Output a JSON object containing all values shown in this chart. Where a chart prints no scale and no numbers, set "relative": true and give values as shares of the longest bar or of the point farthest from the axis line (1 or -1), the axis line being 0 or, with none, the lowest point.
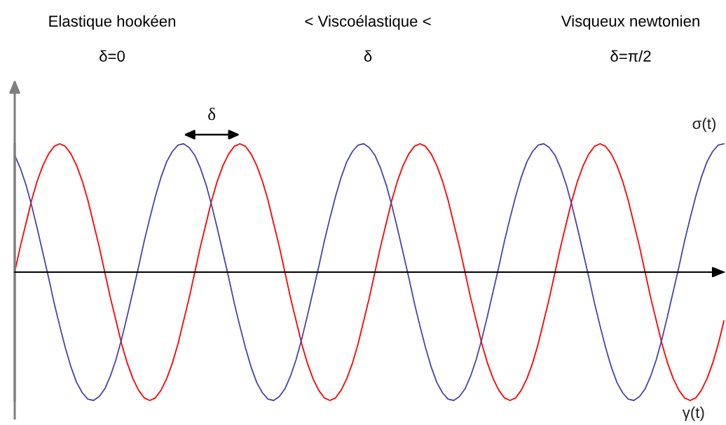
{
  "chart_data": {
    "type": "line",
    "relative": true,
    "categories": [
      null,
      null,
      null,
      null,
      null,
      null,
      null,
      null,
      null,
      null,
      null,
      null,
      null,
      null,
      null,
      null,
      null,
      null,
      null,
      null,
      null,
      null,
      null,
      null,
      null,
      null,
      null,
      null,
      null,
      null,
      null,
      null,
      null,
      null,
      null,
      null,
      null,
      null,
      null,
      null,
      null,
      null,
      null,
      null,
      null,
      null,
      null,
      null,
      null,
      null,
      null,
      null,
      null,
      null,
      null,
      null,
      null,
      null,
      null,
      null,
      null,
      null,
      null,
      null,
      null,
      null,
      null,
      null,
      null,
      null,
      null,
      null,
      null,
      null,
      null,
      null,
      null,
      null,
      null,
      null,
      null,
      null,
      null,
      null,
      null,
      null,
      null,
      null,
      null,
      null,
      null,
      null,
      null,
      null,
      null,
      null,
      null,
      null,
      null,
      null,
      null,
      null,
      null,
      null,
      null,
      null,
      null,
      null,
      null,
      null,
      null,
      null,
      null,
      null,
      null,
      null,
      null,
      null,
      null,
      null,
      null,
      null,
      null,
      null,
      null,
      null,
      null
    ],
    "series": [
      {
        "name": "γ(t)",
        "color": "#ff0000",
        "values": [
          0,
          0.2,
          0.38,
          0.56,
          0.71,
          0.83,
          0.92,
          0.98,
          1,
          0.98,
          0.92,
          0.83,
          0.71,
          0.56,
          0.38,
          0.2,
          0,
          -0.2,
          -0.38,
          -0.56,
          -0.71,
          -0.83,
          -0.92,
          -0.98,
          -1,
          -0.98,
          -0.92,
          -0.83,
          -0.71,
          -0.56,
          -0.38,
          -0.2,
          0,
          0.2,
          0.38,
          0.56,
          0.71,
          0.83,
          0.92,
          0.98,
          1,
          0.98,
          0.92,
          0.83,
          0.71,
          0.56,
          0.38,
          0.2,
          0,
          -0.2,
          -0.38,
          -0.56,
          -0.71,
          -0.83,
          -0.92,
          -0.98,
          -1,
          -0.98,
          -0.92,
          -0.83,
          -0.71,
          -0.56,
          -0.38,
          -0.2,
          0,
          0.2,
          0.38,
          0.56,
          0.71,
          0.83,
          0.92,
          0.98,
          1,
          0.98,
          0.92,
          0.83,
          0.71,
          0.56,
          0.38,
          0.2,
          0,
          -0.2,
          -0.38,
          -0.56,
          -0.71,
          -0.83,
          -0.92,
          -0.98,
          -1,
          -0.98,
          -0.92,
          -0.83,
          -0.71,
          -0.56,
          -0.38,
          -0.2,
          0,
          0.2,
          0.38,
          0.56,
          0.71,
          0.83,
          0.92,
          0.98,
          1,
          0.98,
          0.92,
          0.83,
          0.71,
          0.56,
          0.38,
          0.2,
          0,
          -0.2,
          -0.38,
          -0.56,
          -0.71,
          -0.83,
          -0.92,
          -0.98,
          -1,
          -0.98,
          -0.92,
          -0.83,
          -0.71,
          -0.56,
          -0.38
        ]
      },
      {
        "name": "σ(t)",
        "color": "#4646a8",
        "values": [
          0.91,
          0.81,
          0.68,
          0.52,
          0.34,
          0.15,
          -0.04,
          -0.24,
          -0.42,
          -0.59,
          -0.74,
          -0.86,
          -0.94,
          -0.99,
          -1,
          -0.97,
          -0.91,
          -0.81,
          -0.68,
          -0.52,
          -0.34,
          -0.15,
          0.04,
          0.24,
          0.42,
          0.59,
          0.74,
          0.86,
          0.94,
          0.99,
          1,
          0.97,
          0.91,
          0.81,
          0.68,
          0.52,
          0.34,
          0.15,
          -0.04,
          -0.24,
          -0.42,
          -0.59,
          -0.74,
          -0.86,
          -0.94,
          -0.99,
          -1,
          -0.97,
          -0.91,
          -0.81,
          -0.68,
          -0.52,
          -0.34,
          -0.15,
          0.04,
          0.24,
          0.42,
          0.59,
          0.74,
          0.86,
          0.94,
          0.99,
          1,
          0.97,
          0.91,
          0.81,
          0.68,
          0.52,
          0.34,
          0.15,
          -0.04,
          -0.24,
          -0.42,
          -0.59,
          -0.74,
          -0.86,
          -0.94,
          -0.99,
          -1,
          -0.97,
          -0.91,
          -0.81,
          -0.68,
          -0.52,
          -0.34,
          -0.15,
          0.04,
          0.24,
          0.42,
          0.59,
          0.74,
          0.86,
          0.94,
          0.99,
          1,
          0.97,
          0.91,
          0.81,
          0.68,
          0.52,
          0.34,
          0.15,
          -0.04,
          -0.24,
          -0.42,
          -0.59,
          -0.74,
          -0.86,
          -0.94,
          -0.99,
          -1,
          -0.97,
          -0.91,
          -0.81,
          -0.68,
          -0.52,
          -0.34,
          -0.15,
          0.04,
          0.24,
          0.42,
          0.59,
          0.74,
          0.86,
          0.94,
          0.99,
          1
        ]
      }
    ],
    "annotations": [
      "Elastique hookéen",
      "< Viscoélastique <",
      "Visqueux newtonien",
      "δ=0",
      "δ",
      "δ=π/2",
      "δ"
    ]
  }
}
